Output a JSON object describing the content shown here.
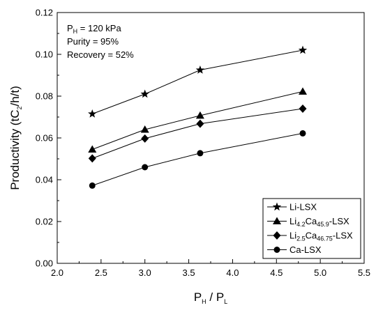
{
  "chart_data": {
    "type": "line",
    "xlabel": {
      "main": "P",
      "sub1": "H",
      "mid": " / P",
      "sub2": "L"
    },
    "ylabel": {
      "pre": "Productivity (tC",
      "sub": "2",
      "post": "/h/t)"
    },
    "xlim": [
      2.0,
      5.5
    ],
    "ylim": [
      0.0,
      0.12
    ],
    "xticks": [
      "2.0",
      "2.5",
      "3.0",
      "3.5",
      "4.0",
      "4.5",
      "5.0",
      "5.5"
    ],
    "yticks": [
      "0.00",
      "0.02",
      "0.04",
      "0.06",
      "0.08",
      "0.10",
      "0.12"
    ],
    "grid": false,
    "legend_position": "bottom-right",
    "annotations": {
      "pressure": {
        "pre": "P",
        "sub": "H",
        "post": " = 120 kPa"
      },
      "purity": "Purity = 95%",
      "recovery": "Recovery = 52%"
    },
    "x": [
      2.4,
      3.0,
      3.63,
      4.8
    ],
    "series": [
      {
        "name": "Li-LSX",
        "name_parts": [
          {
            "t": "Li-LSX",
            "s": false
          }
        ],
        "marker": "star",
        "values": [
          0.0715,
          0.081,
          0.0925,
          0.102
        ]
      },
      {
        "name": "Li4.2Ca45.9-LSX",
        "name_parts": [
          {
            "t": "Li",
            "s": false
          },
          {
            "t": "4.2",
            "s": true
          },
          {
            "t": "Ca",
            "s": false
          },
          {
            "t": "45.9",
            "s": true
          },
          {
            "t": "-LSX",
            "s": false
          }
        ],
        "marker": "triangle",
        "values": [
          0.0545,
          0.064,
          0.0707,
          0.0822
        ]
      },
      {
        "name": "Li2.5Ca46.75-LSX",
        "name_parts": [
          {
            "t": "Li",
            "s": false
          },
          {
            "t": "2.5",
            "s": true
          },
          {
            "t": "Ca",
            "s": false
          },
          {
            "t": "46.75",
            "s": true
          },
          {
            "t": "-LSX",
            "s": false
          }
        ],
        "marker": "diamond",
        "values": [
          0.0502,
          0.0597,
          0.0668,
          0.074
        ]
      },
      {
        "name": "Ca-LSX",
        "name_parts": [
          {
            "t": "Ca-LSX",
            "s": false
          }
        ],
        "marker": "circle",
        "values": [
          0.0372,
          0.046,
          0.0527,
          0.0622
        ]
      }
    ]
  }
}
